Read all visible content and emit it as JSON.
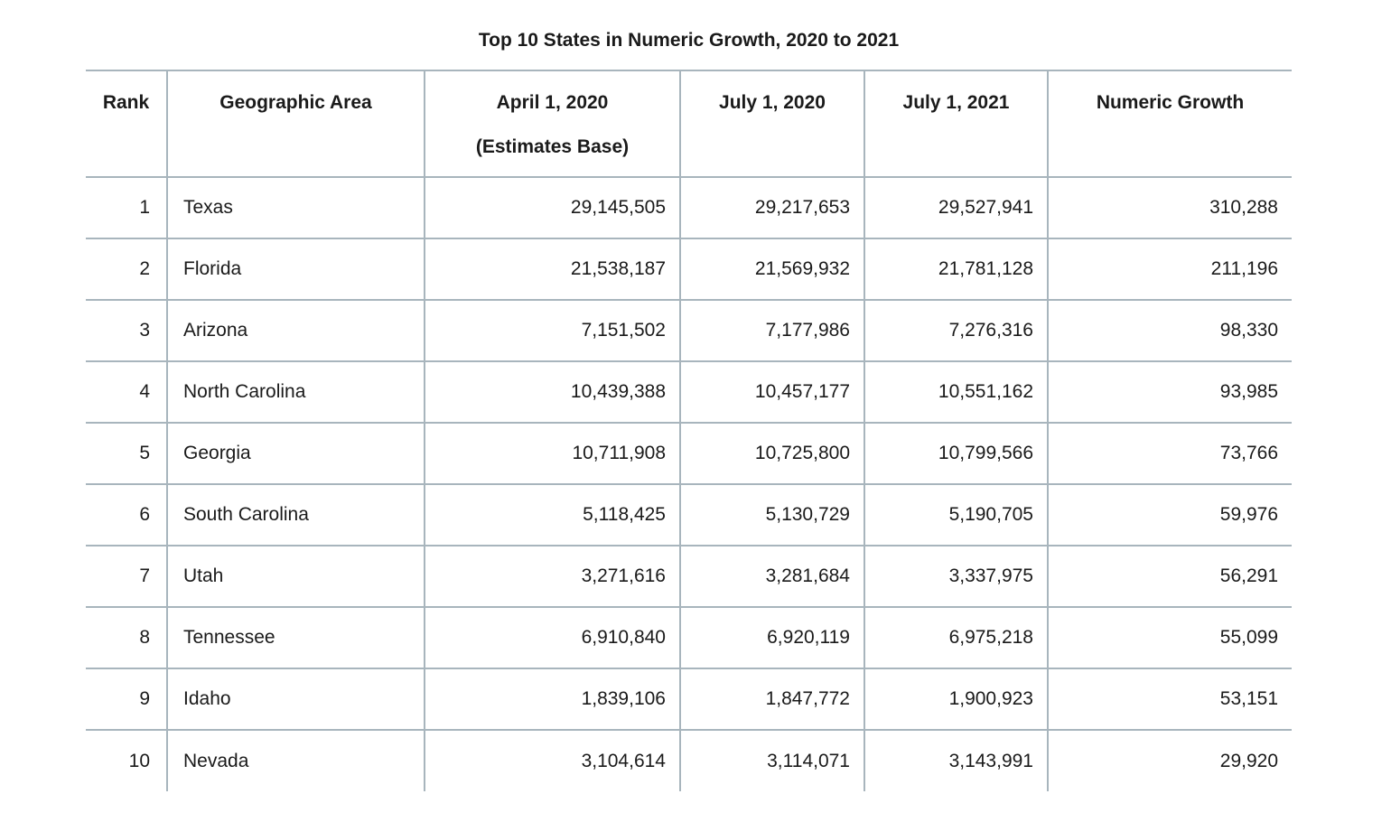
{
  "page": {
    "title": "Top 10 States in Numeric Growth, 2020 to 2021"
  },
  "colors": {
    "text": "#1a1a1a",
    "border": "#a8b5bd",
    "background": "#ffffff"
  },
  "table": {
    "columns": [
      {
        "label": "Rank",
        "sublabel": ""
      },
      {
        "label": "Geographic Area",
        "sublabel": ""
      },
      {
        "label": "April 1, 2020",
        "sublabel": "(Estimates Base)"
      },
      {
        "label": "July 1, 2020",
        "sublabel": ""
      },
      {
        "label": "July 1, 2021",
        "sublabel": ""
      },
      {
        "label": "Numeric Growth",
        "sublabel": ""
      }
    ],
    "rows": [
      {
        "rank": "1",
        "area": "Texas",
        "april_2020": "29,145,505",
        "july_2020": "29,217,653",
        "july_2021": "29,527,941",
        "growth": "310,288"
      },
      {
        "rank": "2",
        "area": "Florida",
        "april_2020": "21,538,187",
        "july_2020": "21,569,932",
        "july_2021": "21,781,128",
        "growth": "211,196"
      },
      {
        "rank": "3",
        "area": "Arizona",
        "april_2020": "7,151,502",
        "july_2020": "7,177,986",
        "july_2021": "7,276,316",
        "growth": "98,330"
      },
      {
        "rank": "4",
        "area": "North Carolina",
        "april_2020": "10,439,388",
        "july_2020": "10,457,177",
        "july_2021": "10,551,162",
        "growth": "93,985"
      },
      {
        "rank": "5",
        "area": "Georgia",
        "april_2020": "10,711,908",
        "july_2020": "10,725,800",
        "july_2021": "10,799,566",
        "growth": "73,766"
      },
      {
        "rank": "6",
        "area": "South Carolina",
        "april_2020": "5,118,425",
        "july_2020": "5,130,729",
        "july_2021": "5,190,705",
        "growth": "59,976"
      },
      {
        "rank": "7",
        "area": "Utah",
        "april_2020": "3,271,616",
        "july_2020": "3,281,684",
        "july_2021": "3,337,975",
        "growth": "56,291"
      },
      {
        "rank": "8",
        "area": "Tennessee",
        "april_2020": "6,910,840",
        "july_2020": "6,920,119",
        "july_2021": "6,975,218",
        "growth": "55,099"
      },
      {
        "rank": "9",
        "area": "Idaho",
        "april_2020": "1,839,106",
        "july_2020": "1,847,772",
        "july_2021": "1,900,923",
        "growth": "53,151"
      },
      {
        "rank": "10",
        "area": "Nevada",
        "april_2020": "3,104,614",
        "july_2020": "3,114,071",
        "july_2021": "3,143,991",
        "growth": "29,920"
      }
    ]
  },
  "chart_data": {
    "type": "table",
    "title": "Top 10 States in Numeric Growth, 2020 to 2021",
    "columns": [
      "Rank",
      "Geographic Area",
      "April 1, 2020 (Estimates Base)",
      "July 1, 2020",
      "July 1, 2021",
      "Numeric Growth"
    ],
    "rows": [
      [
        1,
        "Texas",
        29145505,
        29217653,
        29527941,
        310288
      ],
      [
        2,
        "Florida",
        21538187,
        21569932,
        21781128,
        211196
      ],
      [
        3,
        "Arizona",
        7151502,
        7177986,
        7276316,
        98330
      ],
      [
        4,
        "North Carolina",
        10439388,
        10457177,
        10551162,
        93985
      ],
      [
        5,
        "Georgia",
        10711908,
        10725800,
        10799566,
        73766
      ],
      [
        6,
        "South Carolina",
        5118425,
        5130729,
        5190705,
        59976
      ],
      [
        7,
        "Utah",
        3271616,
        3281684,
        3337975,
        56291
      ],
      [
        8,
        "Tennessee",
        6910840,
        6920119,
        6975218,
        55099
      ],
      [
        9,
        "Idaho",
        1839106,
        1847772,
        1900923,
        53151
      ],
      [
        10,
        "Nevada",
        3104614,
        3114071,
        3143991,
        29920
      ]
    ]
  }
}
